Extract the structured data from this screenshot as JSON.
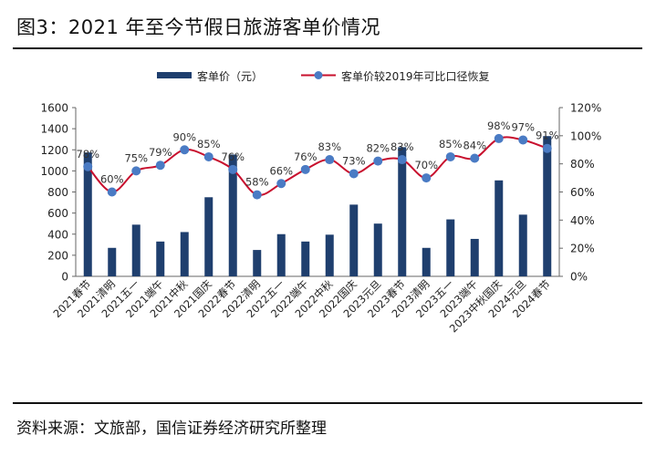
{
  "page": {
    "title": "图3：2021 年至今节假日旅游客单价情况",
    "source": "资料来源：文旅部，国信证券经济研究所整理"
  },
  "colors": {
    "bar": "#1f3f6e",
    "line": "#c8102e",
    "marker": "#4a7bc4"
  },
  "chart_data": {
    "type": "bar+line",
    "title": "",
    "legend_position": "top",
    "grid": false,
    "categories": [
      "2021春节",
      "2021清明",
      "2021五一",
      "2021端午",
      "2021中秋",
      "2021国庆",
      "2022春节",
      "2022清明",
      "2022五一",
      "2022端午",
      "2022中秋",
      "2022国庆",
      "2023元旦",
      "2023春节",
      "2023清明",
      "2023五一",
      "2023端午",
      "2023中秋国庆",
      "2024元旦",
      "2024春节"
    ],
    "y_left": {
      "min": 0,
      "max": 1600,
      "step": 200,
      "ticks": [
        "0",
        "200",
        "400",
        "600",
        "800",
        "1000",
        "1200",
        "1400",
        "1600"
      ]
    },
    "y_right": {
      "min": 0,
      "max": 120,
      "step": 20,
      "ticks": [
        "0%",
        "20%",
        "40%",
        "60%",
        "80%",
        "100%",
        "120%"
      ]
    },
    "series": [
      {
        "name": "客单价（元）",
        "type": "bar",
        "axis": "left",
        "values": [
          1175,
          270,
          490,
          330,
          420,
          750,
          1155,
          250,
          400,
          330,
          395,
          680,
          500,
          1225,
          270,
          540,
          355,
          910,
          585,
          1330
        ]
      },
      {
        "name": "客单价较2019年可比口径恢复",
        "type": "line",
        "axis": "right",
        "values": [
          78,
          60,
          75,
          79,
          90,
          85,
          76,
          58,
          66,
          76,
          83,
          73,
          82,
          83,
          70,
          85,
          84,
          98,
          97,
          91
        ],
        "labels": [
          "78%",
          "60%",
          "75%",
          "79%",
          "90%",
          "85%",
          "76%",
          "58%",
          "66%",
          "76%",
          "83%",
          "73%",
          "82%",
          "83%",
          "70%",
          "85%",
          "84%",
          "98%",
          "97%",
          "91%"
        ]
      }
    ]
  }
}
